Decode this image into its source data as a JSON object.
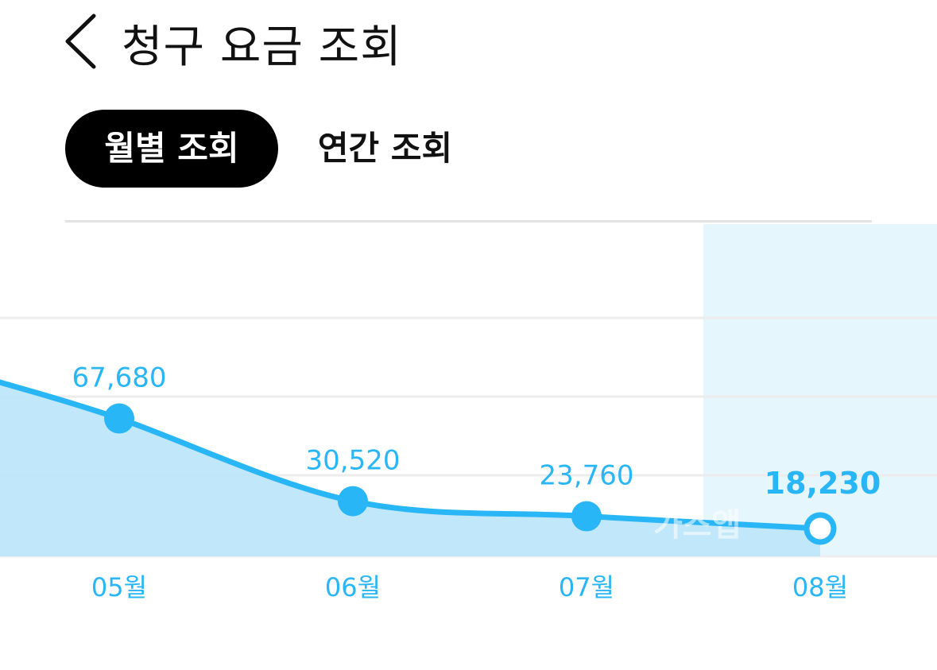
{
  "header": {
    "back_icon": "chevron-left-icon",
    "title": "청구 요금 조회"
  },
  "tabs": [
    {
      "label": "월별 조회",
      "selected": true
    },
    {
      "label": "연간 조회",
      "selected": false
    }
  ],
  "watermark": "가스앱",
  "colors": {
    "accent": "#29B6F6",
    "area_fill": "#BEE6FA",
    "highlight_band": "#E6F6FD",
    "tab_selected_bg": "#000000",
    "tab_selected_text": "#FFFFFF"
  },
  "chart_data": {
    "type": "area",
    "categories": [
      "05월",
      "06월",
      "07월",
      "08월"
    ],
    "values": [
      67680,
      30520,
      23760,
      18230
    ],
    "value_labels": [
      "67,680",
      "30,520",
      "23,760",
      "18,230"
    ],
    "selected_category": "08월",
    "grid": true
  }
}
